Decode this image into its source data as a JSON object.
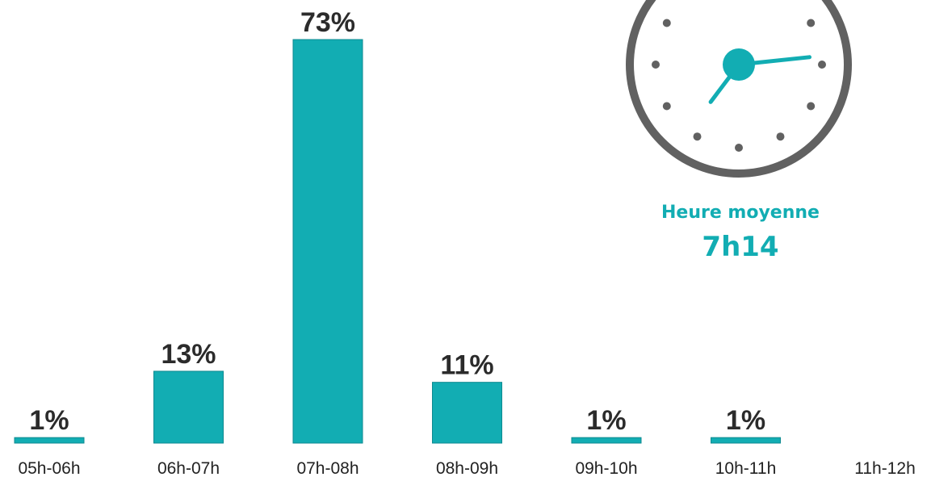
{
  "chart_data": {
    "type": "bar",
    "categories": [
      "05h-06h",
      "06h-07h",
      "07h-08h",
      "08h-09h",
      "09h-10h",
      "10h-11h",
      "11h-12h"
    ],
    "values": [
      1,
      13,
      73,
      11,
      1,
      1,
      0
    ],
    "value_labels": [
      "1%",
      "13%",
      "73%",
      "11%",
      "1%",
      "1%",
      ""
    ],
    "title": "",
    "xlabel": "",
    "ylabel": "",
    "ylim": [
      0,
      73
    ],
    "grid": false,
    "legend": "none"
  },
  "average": {
    "label": "Heure moyenne",
    "value": "7h14",
    "icon": "clock-icon",
    "clock_hour": 7,
    "clock_minute": 14
  },
  "colors": {
    "bar": "#12adb3",
    "accent_text": "#12adb3",
    "clock_ring": "#616161",
    "clock_dots": "#616161",
    "clock_hands": "#12adb3"
  }
}
